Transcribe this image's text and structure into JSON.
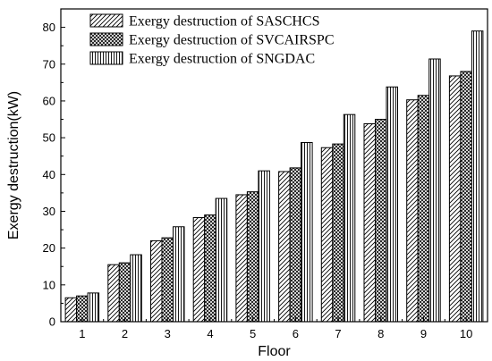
{
  "chart_data": {
    "type": "bar",
    "title": "",
    "xlabel": "Floor",
    "ylabel": "Exergy destruction(kW)",
    "categories": [
      "1",
      "2",
      "3",
      "4",
      "5",
      "6",
      "7",
      "8",
      "9",
      "10"
    ],
    "ylim": [
      0,
      85
    ],
    "yticks": [
      0,
      10,
      20,
      30,
      40,
      50,
      60,
      70,
      80
    ],
    "grid": false,
    "legend_position": "top-left",
    "series": [
      {
        "name": "Exergy destruction of SASCHCS",
        "pattern": "diagonal-hatch",
        "values": [
          6.5,
          15.5,
          22,
          28.3,
          34.5,
          40.8,
          47.3,
          53.8,
          60.3,
          66.8
        ]
      },
      {
        "name": "Exergy destruction of SVCAIRSPC",
        "pattern": "crosshatch",
        "values": [
          7.0,
          16.0,
          22.8,
          29.0,
          35.3,
          41.8,
          48.3,
          55.0,
          61.5,
          68.0
        ]
      },
      {
        "name": "Exergy destruction of SNGDAC",
        "pattern": "vertical-lines",
        "values": [
          7.8,
          18.2,
          25.8,
          33.5,
          41.0,
          48.7,
          56.3,
          63.8,
          71.4,
          79.0
        ]
      }
    ]
  }
}
